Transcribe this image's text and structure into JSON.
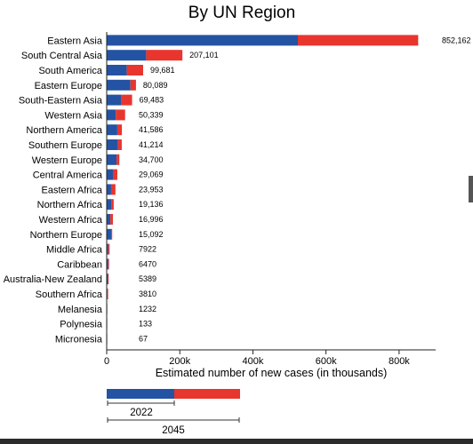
{
  "chart_data": {
    "type": "bar",
    "orientation": "horizontal",
    "stacked": true,
    "title": "By UN Region",
    "xlabel": "Estimated number of new cases (in thousands)",
    "ylabel": "",
    "xlim": [
      0,
      900000
    ],
    "x_ticks": [
      0,
      200000,
      400000,
      600000,
      800000
    ],
    "x_tick_labels": [
      "0",
      "200k",
      "400k",
      "600k",
      "800k"
    ],
    "grid": false,
    "colors": {
      "series_2022": "#2453a3",
      "series_2045_increase": "#e8352e"
    },
    "categories": [
      "Eastern Asia",
      "South Central Asia",
      "South America",
      "Eastern Europe",
      "South-Eastern Asia",
      "Western Asia",
      "Northern America",
      "Southern Europe",
      "Western Europe",
      "Central America",
      "Eastern Africa",
      "Northern Africa",
      "Western Africa",
      "Northern Europe",
      "Middle Africa",
      "Caribbean",
      "Australia-New Zealand",
      "Southern Africa",
      "Melanesia",
      "Polynesia",
      "Micronesia"
    ],
    "totals": [
      852162,
      207101,
      99681,
      80089,
      69483,
      50339,
      41586,
      41214,
      34700,
      29069,
      23953,
      19136,
      16996,
      15092,
      7922,
      6470,
      5389,
      3810,
      1232,
      133,
      67
    ],
    "total_labels": [
      "852,162",
      "207,101",
      "99,681",
      "80,089",
      "69,483",
      "50,339",
      "41,586",
      "41,214",
      "34,700",
      "29,069",
      "23,953",
      "19,136",
      "16,996",
      "15,092",
      "7922",
      "6470",
      "5389",
      "3810",
      "1232",
      "133",
      "67"
    ],
    "series": [
      {
        "values": [
          523000,
          108000,
          55000,
          65000,
          39000,
          25000,
          29000,
          31000,
          27000,
          17000,
          12000,
          13000,
          10000,
          13000,
          4500,
          4400,
          3500,
          2100,
          700,
          70,
          40
        ]
      },
      {
        "values": [
          329162,
          99101,
          44681,
          15089,
          30483,
          25339,
          12586,
          10214,
          7700,
          12069,
          11953,
          6136,
          6996,
          2092,
          3422,
          2070,
          1889,
          1710,
          532,
          63,
          27
        ]
      }
    ],
    "legend": {
      "placement": "bottom-left",
      "labels": [
        "2022",
        "2045"
      ]
    }
  }
}
